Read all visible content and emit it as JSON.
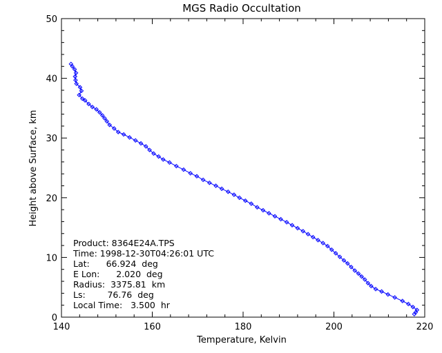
{
  "chart_data": {
    "type": "line",
    "title": "MGS Radio Occultation",
    "xlabel": "Temperature, Kelvin",
    "ylabel": "Height above Surface, km",
    "xlim": [
      140,
      220
    ],
    "ylim": [
      0,
      50
    ],
    "xticks": [
      "140",
      "160",
      "180",
      "200",
      "220"
    ],
    "yticks": [
      "0",
      "10",
      "20",
      "30",
      "40",
      "50"
    ],
    "grid": false,
    "line_color": "#0000ff",
    "marker": "diamond",
    "series": [
      {
        "x": [
          142.1,
          142.4,
          142.9,
          143.2,
          143.0,
          143.1,
          143.3,
          144.1,
          144.4,
          143.9,
          144.6,
          145.2,
          146.0,
          146.8,
          147.7,
          148.4,
          149.0,
          149.5,
          150.0,
          150.6,
          151.6,
          152.5,
          153.7,
          155.0,
          156.3,
          157.5,
          158.6,
          159.4,
          160.3,
          161.4,
          162.4,
          163.8,
          165.3,
          166.9,
          168.4,
          169.8,
          171.2,
          172.6,
          174.0,
          175.3,
          176.7,
          178.0,
          179.2,
          180.5,
          181.8,
          183.1,
          184.4,
          185.7,
          187.0,
          188.3,
          189.6,
          190.8,
          192.0,
          193.2,
          194.3,
          195.4,
          196.5,
          197.6,
          198.6,
          199.5,
          200.4,
          201.3,
          202.2,
          203.0,
          203.8,
          204.6,
          205.4,
          206.1,
          206.8,
          207.5,
          208.2,
          209.2,
          210.5,
          211.9,
          213.4,
          215.1,
          216.4,
          217.4,
          218.3,
          218.0,
          217.7
        ],
        "y": [
          42.4,
          42.0,
          41.5,
          40.9,
          40.3,
          39.7,
          39.1,
          38.5,
          37.9,
          37.2,
          36.6,
          36.3,
          35.7,
          35.2,
          34.8,
          34.3,
          33.8,
          33.3,
          32.8,
          32.2,
          31.6,
          31.0,
          30.6,
          30.1,
          29.6,
          29.1,
          28.6,
          28.0,
          27.4,
          26.9,
          26.4,
          25.9,
          25.3,
          24.7,
          24.1,
          23.6,
          23.0,
          22.5,
          22.0,
          21.5,
          21.0,
          20.5,
          20.0,
          19.5,
          19.0,
          18.4,
          17.9,
          17.4,
          16.9,
          16.4,
          15.9,
          15.4,
          14.9,
          14.4,
          13.9,
          13.4,
          12.9,
          12.4,
          11.9,
          11.3,
          10.7,
          10.1,
          9.5,
          9.0,
          8.4,
          7.8,
          7.3,
          6.8,
          6.3,
          5.7,
          5.2,
          4.7,
          4.3,
          3.8,
          3.3,
          2.7,
          2.2,
          1.7,
          1.2,
          0.8,
          0.5
        ]
      }
    ],
    "annotations": [
      "Product: 8364E24A.TPS",
      "Time: 1998-12-30T04:26:01 UTC",
      "Lat:      66.924  deg",
      "E Lon:      2.020  deg",
      "Radius:  3375.81  km",
      "Ls:        76.76  deg",
      "Local Time:   3.500  hr"
    ]
  }
}
